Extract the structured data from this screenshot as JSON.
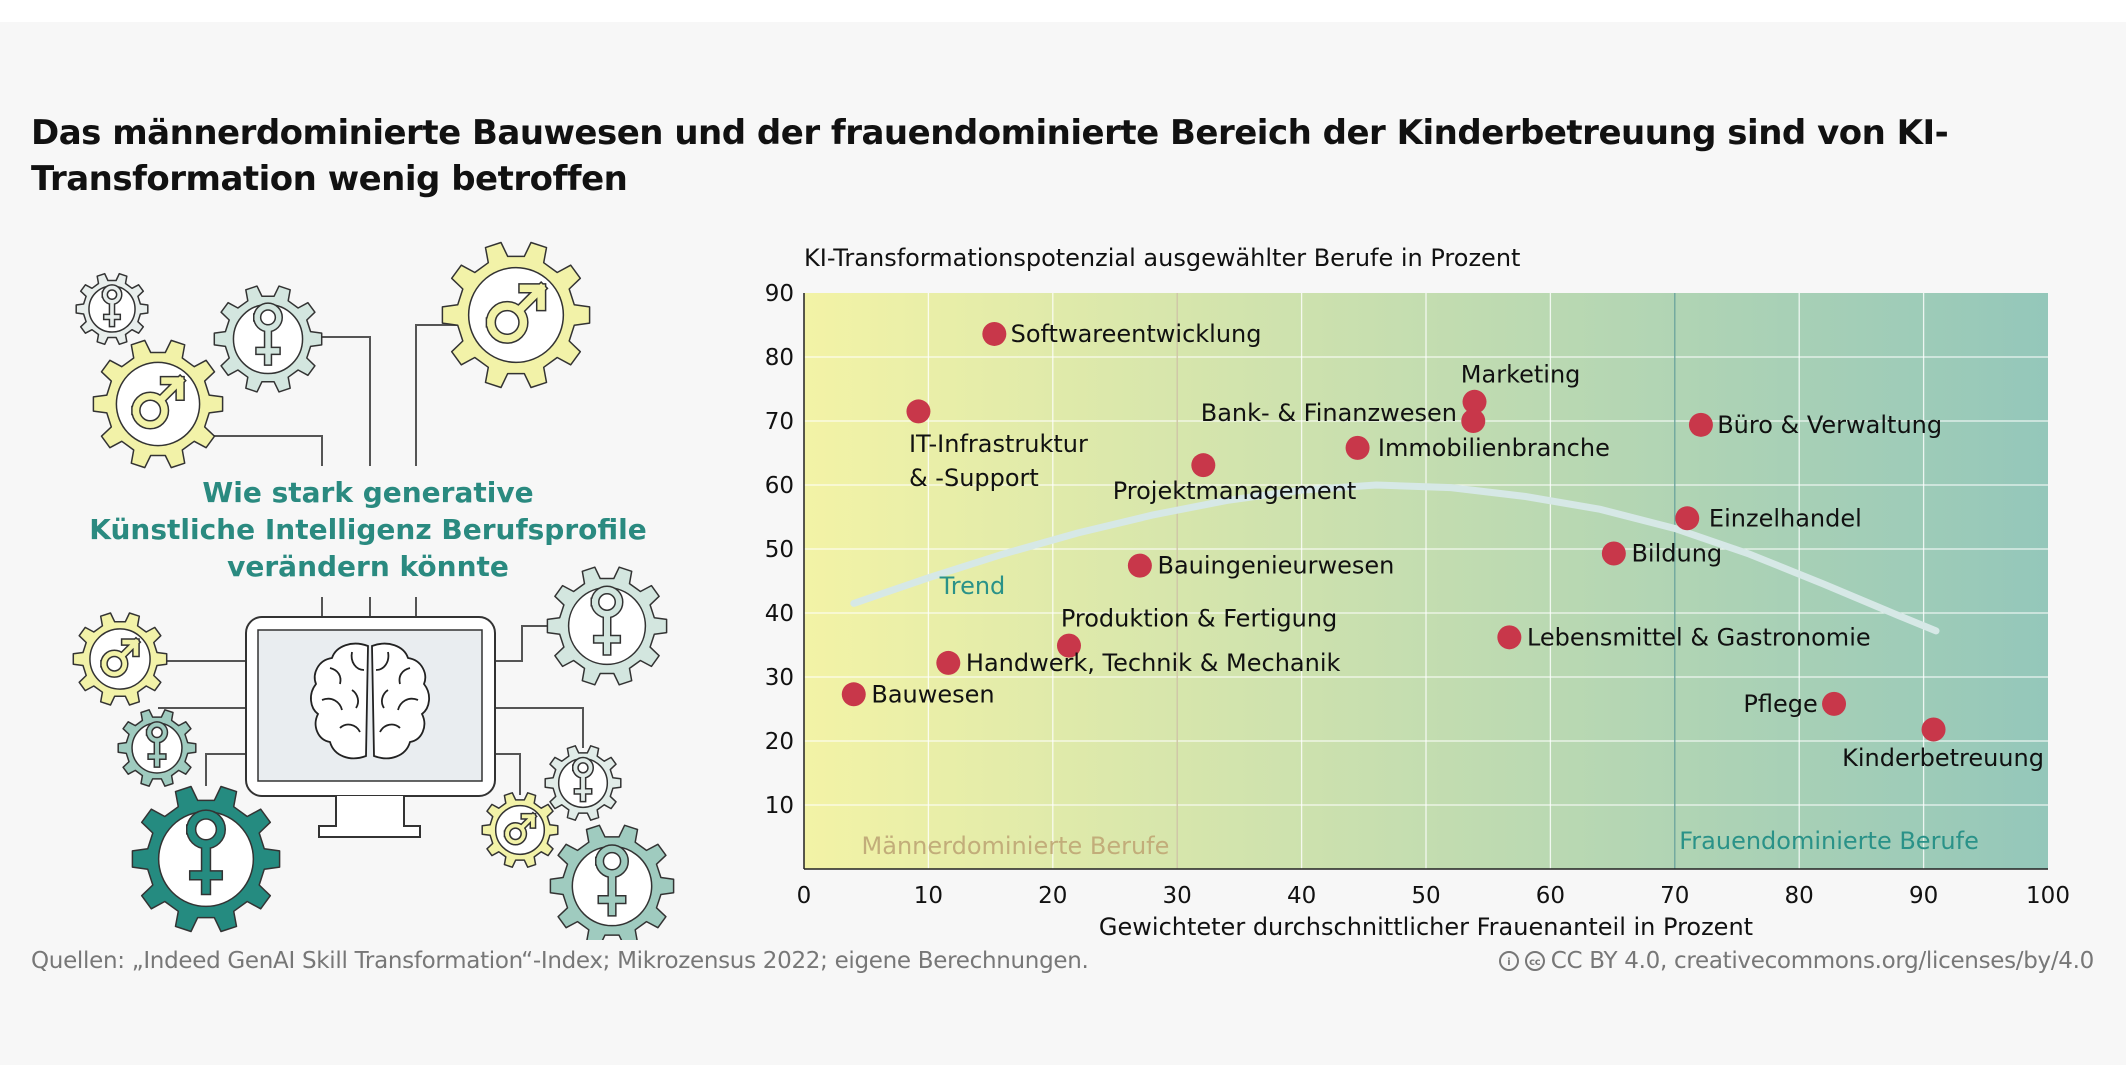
{
  "title": "Das männerdominierte Bauwesen und der frauendominierte Bereich der Kinderbetreuung sind von KI-Transformation wenig betroffen",
  "illustration": {
    "lines": [
      "Wie stark generative",
      "Künstliche Intelligenz Berufsprofile",
      "verändern könnte"
    ],
    "icons": [
      "gear-female-icon",
      "gear-male-icon",
      "monitor-icon",
      "brain-icon"
    ],
    "colors": {
      "teal": "#2a8a80",
      "yellow": "#f2f2a8",
      "light_teal": "#d3e6df",
      "mid_teal": "#9fcbbf",
      "dark_teal": "#258b80"
    }
  },
  "chart_data": {
    "type": "scatter",
    "title": "KI-Transformationspotenzial ausgewählter Berufe in Prozent",
    "xlabel": "Gewichteter durchschnittlicher Frauenanteil in Prozent",
    "ylabel": "",
    "xlim": [
      0,
      100
    ],
    "ylim": [
      0,
      90
    ],
    "xticks": [
      "0",
      "10",
      "20",
      "30",
      "40",
      "50",
      "60",
      "70",
      "80",
      "90",
      "100"
    ],
    "yticks": [
      "10",
      "20",
      "30",
      "40",
      "50",
      "60",
      "70",
      "80",
      "90"
    ],
    "grid": true,
    "point_color": "#c8374a",
    "background_gradient": [
      "#f3f3a6",
      "#94c7ba"
    ],
    "points": [
      {
        "label": "Softwareentwicklung",
        "x": 15.3,
        "y": 83.6
      },
      {
        "label": "IT-Infrastruktur\n& -Support",
        "x": 9.2,
        "y": 71.5
      },
      {
        "label": "Marketing",
        "x": 53.9,
        "y": 73.0
      },
      {
        "label": "Bank- & Finanzwesen",
        "x": 53.8,
        "y": 70.0
      },
      {
        "label": "Immobilienbranche",
        "x": 44.5,
        "y": 65.8
      },
      {
        "label": "Büro & Verwaltung",
        "x": 72.1,
        "y": 69.4
      },
      {
        "label": "Projektmanagement",
        "x": 32.1,
        "y": 63.1
      },
      {
        "label": "Einzelhandel",
        "x": 71.0,
        "y": 54.8
      },
      {
        "label": "Bildung",
        "x": 65.1,
        "y": 49.3
      },
      {
        "label": "Bauingenieurwesen",
        "x": 27.0,
        "y": 47.4
      },
      {
        "label": "Produktion & Fertigung",
        "x": 21.3,
        "y": 34.9
      },
      {
        "label": "Lebensmittel & Gastronomie",
        "x": 56.7,
        "y": 36.2
      },
      {
        "label": "Handwerk, Technik & Mechanik",
        "x": 11.6,
        "y": 32.2
      },
      {
        "label": "Bauwesen",
        "x": 4.0,
        "y": 27.3
      },
      {
        "label": "Pflege",
        "x": 82.8,
        "y": 25.8
      },
      {
        "label": "Kinderbetreuung",
        "x": 90.8,
        "y": 21.8
      }
    ],
    "trend": {
      "label": "Trend",
      "color": "#d6e8e6",
      "points": [
        [
          4,
          41.5
        ],
        [
          10,
          45.5
        ],
        [
          16,
          49.2
        ],
        [
          22,
          52.5
        ],
        [
          28,
          55.3
        ],
        [
          34,
          57.6
        ],
        [
          40,
          59.2
        ],
        [
          46,
          60.0
        ],
        [
          52,
          59.6
        ],
        [
          58,
          58.2
        ],
        [
          64,
          56.2
        ],
        [
          70,
          53.2
        ],
        [
          76,
          49.2
        ],
        [
          82,
          44.5
        ],
        [
          88,
          39.6
        ],
        [
          91,
          37.2
        ]
      ]
    },
    "regions": [
      {
        "label": "Männerdominierte Berufe",
        "boundary_x": 30,
        "color": "#c2ad7a"
      },
      {
        "label": "Frauendominierte Berufe",
        "boundary_x": 70,
        "color": "#2a9288"
      }
    ]
  },
  "footer": {
    "source": "Quellen: „Indeed GenAI Skill Transformation“-Index; Mikrozensus 2022; eigene Berechnungen.",
    "license": "CC BY 4.0, creativecommons.org/licenses/by/4.0",
    "license_icons": [
      "cc-by-icon",
      "cc-icon"
    ]
  }
}
